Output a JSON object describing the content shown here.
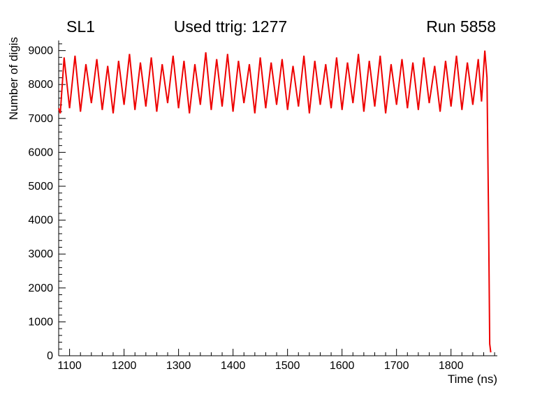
{
  "chart_data": {
    "type": "line",
    "title": "Used ttrig: 1277",
    "corner_labels": {
      "left": "SL1",
      "right": "Run 5858"
    },
    "xlabel": "Time (ns)",
    "ylabel": "Number of digis",
    "xlim": [
      1080,
      1885
    ],
    "ylim": [
      0,
      9300
    ],
    "x_major_ticks": [
      1100,
      1200,
      1300,
      1400,
      1500,
      1600,
      1700,
      1800
    ],
    "x_minor_step": 20,
    "y_major_ticks": [
      0,
      1000,
      2000,
      3000,
      4000,
      5000,
      6000,
      7000,
      8000,
      9000
    ],
    "y_minor_step": 200,
    "grid": false,
    "legend": "none",
    "line_color": "#ee0000",
    "axis_color": "#000000",
    "series": [
      {
        "name": "number-of-digis",
        "points": [
          [
            1080,
            7300
          ],
          [
            1083,
            7150
          ],
          [
            1090,
            8800
          ],
          [
            1100,
            7300
          ],
          [
            1110,
            8850
          ],
          [
            1120,
            7200
          ],
          [
            1130,
            8600
          ],
          [
            1140,
            7450
          ],
          [
            1150,
            8750
          ],
          [
            1160,
            7250
          ],
          [
            1170,
            8550
          ],
          [
            1180,
            7150
          ],
          [
            1190,
            8700
          ],
          [
            1200,
            7400
          ],
          [
            1210,
            8900
          ],
          [
            1220,
            7250
          ],
          [
            1230,
            8650
          ],
          [
            1240,
            7350
          ],
          [
            1250,
            8800
          ],
          [
            1260,
            7200
          ],
          [
            1270,
            8600
          ],
          [
            1280,
            7450
          ],
          [
            1290,
            8850
          ],
          [
            1300,
            7300
          ],
          [
            1310,
            8700
          ],
          [
            1320,
            7150
          ],
          [
            1330,
            8600
          ],
          [
            1340,
            7400
          ],
          [
            1350,
            8950
          ],
          [
            1360,
            7250
          ],
          [
            1370,
            8750
          ],
          [
            1380,
            7350
          ],
          [
            1390,
            8900
          ],
          [
            1400,
            7200
          ],
          [
            1410,
            8700
          ],
          [
            1420,
            7450
          ],
          [
            1430,
            8600
          ],
          [
            1440,
            7150
          ],
          [
            1450,
            8800
          ],
          [
            1460,
            7300
          ],
          [
            1470,
            8650
          ],
          [
            1480,
            7400
          ],
          [
            1490,
            8750
          ],
          [
            1500,
            7250
          ],
          [
            1510,
            8550
          ],
          [
            1520,
            7350
          ],
          [
            1530,
            8850
          ],
          [
            1540,
            7150
          ],
          [
            1550,
            8700
          ],
          [
            1560,
            7400
          ],
          [
            1570,
            8600
          ],
          [
            1580,
            7300
          ],
          [
            1590,
            8800
          ],
          [
            1600,
            7250
          ],
          [
            1610,
            8650
          ],
          [
            1620,
            7450
          ],
          [
            1630,
            8900
          ],
          [
            1640,
            7200
          ],
          [
            1650,
            8700
          ],
          [
            1660,
            7350
          ],
          [
            1670,
            8850
          ],
          [
            1680,
            7150
          ],
          [
            1690,
            8600
          ],
          [
            1700,
            7400
          ],
          [
            1710,
            8750
          ],
          [
            1720,
            7300
          ],
          [
            1730,
            8650
          ],
          [
            1740,
            7250
          ],
          [
            1750,
            8800
          ],
          [
            1760,
            7450
          ],
          [
            1770,
            8550
          ],
          [
            1780,
            7200
          ],
          [
            1790,
            8700
          ],
          [
            1800,
            7350
          ],
          [
            1810,
            8850
          ],
          [
            1820,
            7250
          ],
          [
            1830,
            8650
          ],
          [
            1840,
            7400
          ],
          [
            1850,
            8750
          ],
          [
            1856,
            7500
          ],
          [
            1862,
            9000
          ],
          [
            1866,
            8200
          ],
          [
            1869,
            4000
          ],
          [
            1871,
            350
          ],
          [
            1873,
            100
          ]
        ]
      }
    ]
  }
}
